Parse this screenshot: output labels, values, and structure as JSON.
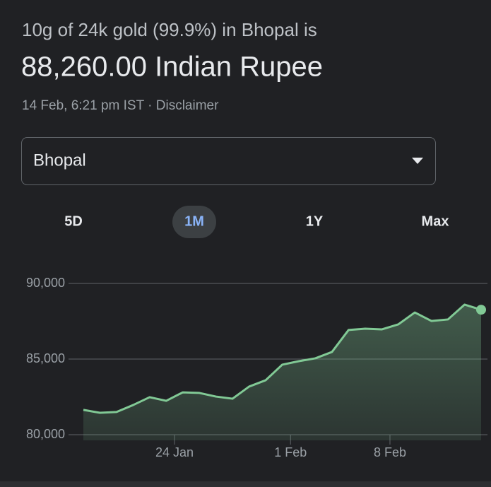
{
  "header": {
    "title": "10g of 24k gold (99.9%) in Bhopal is",
    "price": "88,260.00 Indian Rupee",
    "timestamp": "14 Feb, 6:21 pm IST",
    "separator": "·",
    "disclaimer": "Disclaimer"
  },
  "dropdown": {
    "selected": "Bhopal"
  },
  "tabs": [
    "5D",
    "1M",
    "1Y",
    "Max"
  ],
  "chart_data": {
    "type": "area",
    "x": [
      0,
      1,
      2,
      3,
      4,
      5,
      6,
      7,
      8,
      9,
      10,
      11,
      12,
      13,
      14,
      15,
      16,
      17,
      18,
      19,
      20,
      21,
      22,
      23,
      24
    ],
    "values": [
      81640,
      81450,
      81500,
      81960,
      82480,
      82240,
      82800,
      82760,
      82520,
      82380,
      83180,
      83600,
      84630,
      84860,
      85050,
      85470,
      86920,
      87010,
      86960,
      87290,
      88080,
      87520,
      87620,
      88600,
      88260
    ],
    "color": "#81c995",
    "xlim": [
      0,
      24
    ],
    "xticks": [
      {
        "value": 5.5,
        "label": "24 Jan"
      },
      {
        "value": 12.5,
        "label": "1 Feb"
      },
      {
        "value": 18.5,
        "label": "8 Feb"
      }
    ],
    "ylim": [
      80000,
      90000
    ],
    "yticks": [
      {
        "value": 80000,
        "label": "80,000"
      },
      {
        "value": 85000,
        "label": "85,000"
      },
      {
        "value": 90000,
        "label": "90,000"
      }
    ],
    "grid": true
  }
}
